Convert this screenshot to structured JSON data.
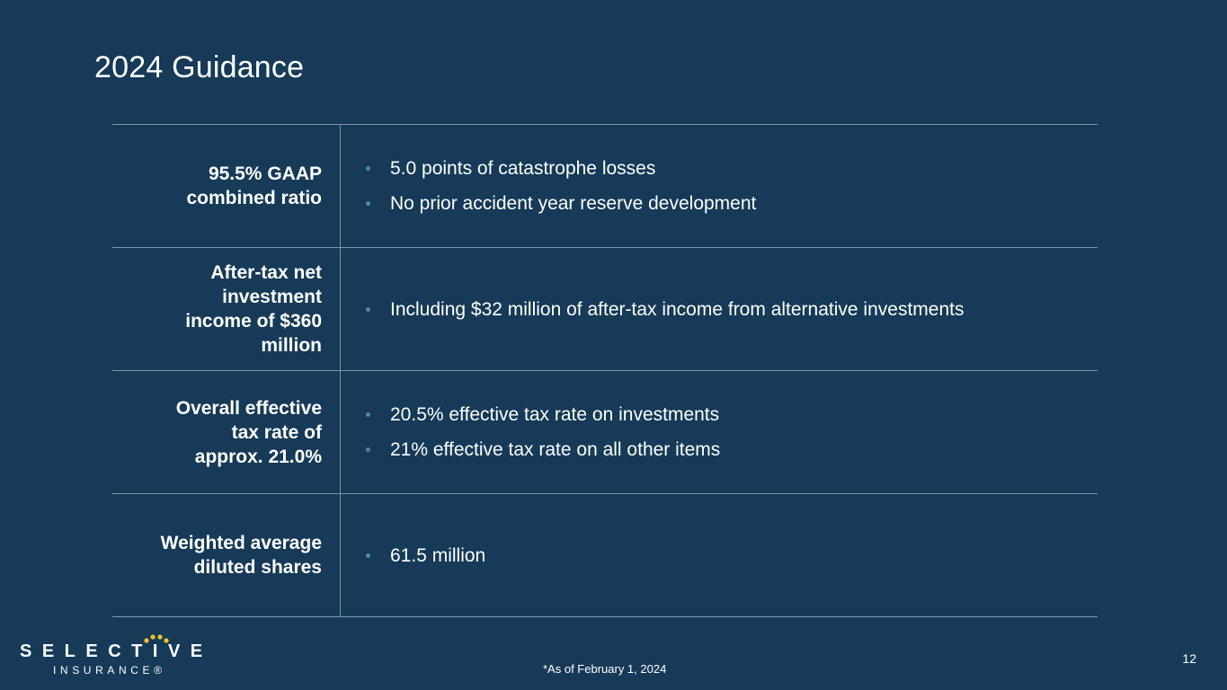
{
  "slide": {
    "title": "2024 Guidance",
    "rows": [
      {
        "label": "95.5% GAAP\ncombined ratio",
        "bullets": [
          "5.0 points of catastrophe losses",
          "No prior accident year reserve development"
        ]
      },
      {
        "label": "After-tax net\ninvestment\nincome of $360\nmillion",
        "bullets": [
          "Including $32 million of after-tax income from alternative investments"
        ]
      },
      {
        "label": "Overall effective\ntax rate of\napprox. 21.0%",
        "bullets": [
          "20.5% effective tax rate on investments",
          "21% effective tax rate on all other items"
        ]
      },
      {
        "label": "Weighted average\ndiluted shares",
        "bullets": [
          "61.5 million"
        ]
      }
    ],
    "footnote": "*As of February 1, 2024",
    "page_number": "12"
  },
  "logo": {
    "word": "SELECTIVE",
    "sub": "INSURANCE®",
    "dot_color": "#f2c230"
  },
  "colors": {
    "background": "#163a57",
    "rule": "#7f95a8",
    "bullet": "#4d87b0"
  }
}
